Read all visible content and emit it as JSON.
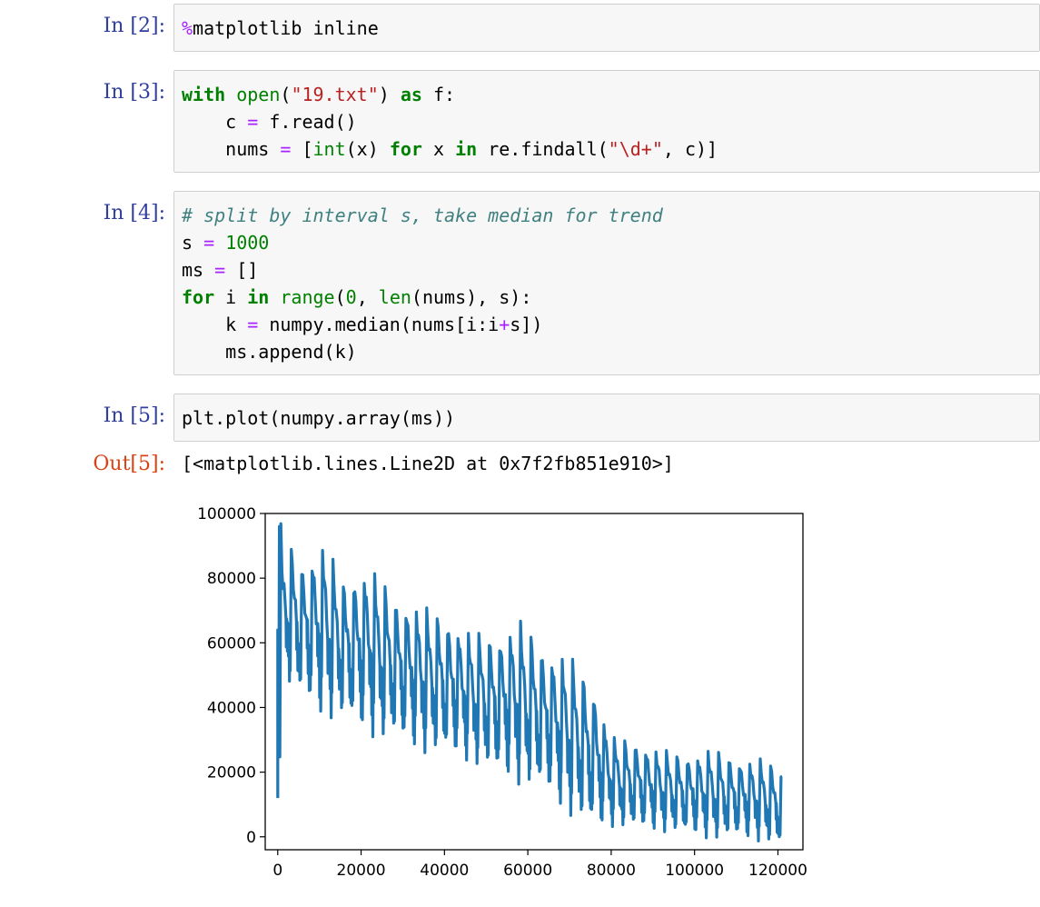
{
  "cells": [
    {
      "prompt": "In  [2]:",
      "lines": [
        [
          {
            "t": "%",
            "c": "mag"
          },
          {
            "t": "matplotlib inline",
            "c": ""
          }
        ]
      ]
    },
    {
      "prompt": "In  [3]:",
      "lines": [
        [
          {
            "t": "with",
            "c": "kw"
          },
          {
            "t": " ",
            "c": ""
          },
          {
            "t": "open",
            "c": "bi"
          },
          {
            "t": "(",
            "c": ""
          },
          {
            "t": "\"19.txt\"",
            "c": "str"
          },
          {
            "t": ") ",
            "c": ""
          },
          {
            "t": "as",
            "c": "kw"
          },
          {
            "t": " f:",
            "c": ""
          }
        ],
        [
          {
            "t": "    c ",
            "c": ""
          },
          {
            "t": "=",
            "c": "op"
          },
          {
            "t": " f.read()",
            "c": ""
          }
        ],
        [
          {
            "t": "    nums ",
            "c": ""
          },
          {
            "t": "=",
            "c": "op"
          },
          {
            "t": " [",
            "c": ""
          },
          {
            "t": "int",
            "c": "bi"
          },
          {
            "t": "(x) ",
            "c": ""
          },
          {
            "t": "for",
            "c": "kw"
          },
          {
            "t": " x ",
            "c": ""
          },
          {
            "t": "in",
            "c": "kw"
          },
          {
            "t": " re.findall(",
            "c": ""
          },
          {
            "t": "\"\\d+\"",
            "c": "str"
          },
          {
            "t": ", c)]",
            "c": ""
          }
        ]
      ]
    },
    {
      "prompt": "In  [4]:",
      "lines": [
        [
          {
            "t": "# split by interval s, take median for trend",
            "c": "cm"
          }
        ],
        [
          {
            "t": "s ",
            "c": ""
          },
          {
            "t": "=",
            "c": "op"
          },
          {
            "t": " ",
            "c": ""
          },
          {
            "t": "1000",
            "c": "num"
          }
        ],
        [
          {
            "t": "ms ",
            "c": ""
          },
          {
            "t": "=",
            "c": "op"
          },
          {
            "t": " []",
            "c": ""
          }
        ],
        [
          {
            "t": "for",
            "c": "kw"
          },
          {
            "t": " i ",
            "c": ""
          },
          {
            "t": "in",
            "c": "kw"
          },
          {
            "t": " ",
            "c": ""
          },
          {
            "t": "range",
            "c": "bi"
          },
          {
            "t": "(",
            "c": ""
          },
          {
            "t": "0",
            "c": "num"
          },
          {
            "t": ", ",
            "c": ""
          },
          {
            "t": "len",
            "c": "bi"
          },
          {
            "t": "(nums), s):",
            "c": ""
          }
        ],
        [
          {
            "t": "    k ",
            "c": ""
          },
          {
            "t": "=",
            "c": "op"
          },
          {
            "t": " numpy.median(nums[i:i",
            "c": ""
          },
          {
            "t": "+",
            "c": "op"
          },
          {
            "t": "s])",
            "c": ""
          }
        ],
        [
          {
            "t": "    ms.append(k)",
            "c": ""
          }
        ]
      ]
    },
    {
      "prompt": "In  [5]:",
      "lines": [
        [
          {
            "t": "plt.plot(numpy.array(ms))",
            "c": ""
          }
        ]
      ]
    }
  ],
  "output": {
    "prompt": "Out[5]:",
    "text": "[<matplotlib.lines.Line2D at 0x7f2fb851e910>]"
  },
  "chart_data": {
    "type": "line",
    "series": [
      {
        "color": "#1f77b4"
      }
    ],
    "xlim": [
      -3000,
      126000
    ],
    "ylim": [
      -4000,
      100000
    ],
    "xticks": [
      0,
      20000,
      40000,
      60000,
      80000,
      100000,
      120000
    ],
    "yticks": [
      0,
      20000,
      40000,
      60000,
      80000,
      100000
    ],
    "xtick_labels": [
      "0",
      "20000",
      "40000",
      "60000",
      "80000",
      "100000",
      "120000"
    ],
    "ytick_labels": [
      "0",
      "20000",
      "40000",
      "60000",
      "80000",
      "100000"
    ],
    "envelope": {
      "x": [
        0,
        2000,
        6000,
        11000,
        16000,
        22000,
        28000,
        34000,
        40000,
        46000,
        52000,
        58000,
        64000,
        70000,
        76000,
        80000,
        86000,
        92000,
        98000,
        104000,
        110000,
        116000,
        121000
      ],
      "high": [
        96000,
        90000,
        83000,
        89000,
        77000,
        82000,
        72000,
        70000,
        66000,
        62000,
        60000,
        65000,
        56000,
        54000,
        44000,
        30000,
        28000,
        26000,
        24000,
        26000,
        23000,
        23000,
        20000
      ],
      "low": [
        12000,
        55000,
        50000,
        46000,
        44000,
        40000,
        38000,
        34000,
        33000,
        30000,
        27000,
        25000,
        22000,
        15000,
        10000,
        8000,
        7000,
        6000,
        5000,
        4000,
        4000,
        3000,
        1000
      ]
    },
    "sawtooth_period": 2500
  }
}
